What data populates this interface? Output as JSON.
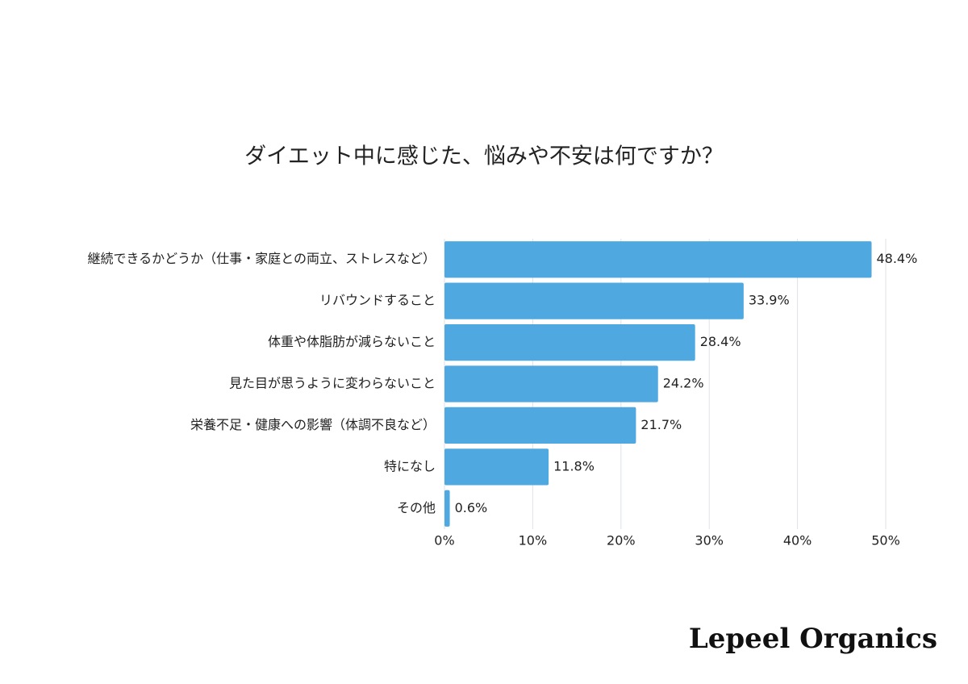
{
  "chart_data": {
    "type": "barh",
    "title": "ダイエット中に感じた、悩みや不安は何ですか？",
    "categories": [
      "継続できるかどうか（仕事・家庭との両立、ストレスなど）",
      "リバウンドすること",
      "体重や体脂肪が減らないこと",
      "見た目が思うように変わらないこと",
      "栄養不足・健康への影響（体調不良など）",
      "特になし",
      "その他"
    ],
    "values": [
      48.4,
      33.9,
      28.4,
      24.2,
      21.7,
      11.8,
      0.6
    ],
    "value_labels": [
      "48.4%",
      "33.9%",
      "28.4%",
      "24.2%",
      "21.7%",
      "11.8%",
      "0.6%"
    ],
    "color": "#4fa9e0",
    "xlim": [
      0,
      50
    ],
    "xticks": [
      {
        "value": 0,
        "label": "0%"
      },
      {
        "value": 10,
        "label": "10%"
      },
      {
        "value": 20,
        "label": "20%"
      },
      {
        "value": 30,
        "label": "30%"
      },
      {
        "value": 40,
        "label": "40%"
      },
      {
        "value": 50,
        "label": "50%"
      }
    ],
    "grid": true
  },
  "brand": "Lepeel Organics"
}
